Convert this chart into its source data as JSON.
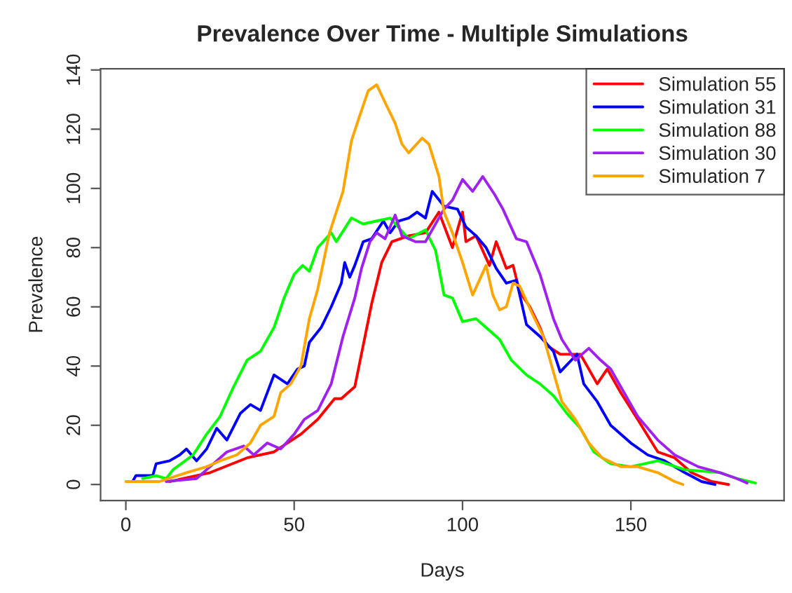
{
  "chart_data": {
    "type": "line",
    "title": "Prevalence Over Time - Multiple Simulations",
    "xlabel": "Days",
    "ylabel": "Prevalence",
    "xlim": [
      -7.5,
      195.5
    ],
    "xticks": [
      0,
      50,
      100,
      150
    ],
    "ylim": [
      -5.4,
      140.4
    ],
    "yticks": [
      0,
      20,
      40,
      60,
      80,
      100,
      120,
      140
    ],
    "grid": false,
    "legend": "top right",
    "line_style": "solid",
    "marker": "none",
    "series": [
      {
        "name": "Simulation 55",
        "color": "#ff0000",
        "x": [
          13,
          25,
          36,
          44,
          52,
          57,
          62,
          64,
          68,
          73,
          76,
          79,
          84,
          89,
          93,
          97,
          100,
          101,
          104,
          108,
          110,
          113,
          115,
          117,
          120,
          123,
          125,
          129,
          135,
          140,
          143,
          147,
          152,
          158,
          163,
          168,
          174,
          179
        ],
        "values": [
          1,
          4,
          9,
          11,
          17,
          22,
          29,
          29,
          33,
          61,
          75,
          82,
          84,
          85,
          92,
          80,
          92,
          82,
          84,
          74,
          82,
          73,
          74,
          65,
          60,
          53,
          47,
          44,
          44,
          34,
          39,
          31,
          22,
          11,
          9,
          4,
          1,
          0
        ]
      },
      {
        "name": "Simulation 31",
        "color": "#0000ff",
        "x": [
          2,
          3,
          8,
          9,
          13,
          16,
          18,
          21,
          24,
          27,
          30,
          34,
          37,
          40,
          44,
          48,
          51,
          53,
          54.5,
          58,
          61,
          64,
          65,
          66.5,
          68,
          70.5,
          73,
          76.5,
          78.5,
          81,
          84,
          86.5,
          89,
          91,
          94.5,
          98.5,
          101,
          104,
          107,
          110,
          113,
          116,
          119,
          123,
          127,
          129,
          134,
          136,
          140,
          144,
          150,
          155,
          160,
          166,
          171,
          175
        ],
        "values": [
          1,
          3,
          3,
          7,
          8,
          10,
          12,
          8,
          12,
          19,
          15,
          24,
          27,
          25,
          37,
          34,
          39,
          40,
          48,
          53,
          60,
          68,
          75,
          70,
          74,
          82,
          83,
          89,
          85,
          89,
          90,
          92,
          90,
          99,
          94,
          93,
          87,
          84,
          80,
          73,
          68,
          69,
          54,
          50,
          45,
          38,
          44,
          34,
          28,
          20,
          14,
          10,
          8,
          4,
          1,
          0
        ]
      },
      {
        "name": "Simulation 88",
        "color": "#00ff00",
        "x": [
          5,
          9,
          12,
          14,
          20,
          24,
          28,
          32,
          36,
          40,
          44,
          47,
          50,
          52.5,
          54.5,
          57,
          61,
          62.5,
          67,
          70.5,
          74.5,
          78.5,
          84,
          89,
          92,
          94.5,
          97,
          100,
          104,
          107,
          111,
          114.5,
          119,
          123,
          127,
          131,
          135,
          139,
          144,
          150,
          158,
          166,
          176.5,
          181.5,
          187
        ],
        "values": [
          2,
          3,
          2,
          5,
          10,
          17,
          23,
          33,
          42,
          45,
          53,
          63,
          71,
          74,
          72,
          80,
          85,
          82,
          90,
          88,
          89,
          90,
          83,
          86,
          79,
          64,
          63,
          55,
          56,
          53,
          49,
          42,
          37,
          34,
          30,
          24,
          19,
          11,
          7,
          6,
          8,
          5,
          4,
          2,
          0.5
        ]
      },
      {
        "name": "Simulation 30",
        "color": "#a020f0",
        "x": [
          12,
          21,
          25,
          30,
          35,
          38,
          42,
          46,
          50,
          53,
          57,
          61,
          64.5,
          68,
          70,
          72.5,
          74.5,
          77,
          80,
          82,
          86,
          89,
          94.5,
          97,
          100,
          103,
          106,
          109.5,
          112,
          116,
          119,
          123,
          127,
          129.5,
          133.5,
          137.5,
          141,
          144,
          148,
          152,
          158,
          163,
          170,
          176.5,
          181.5,
          184.5
        ],
        "values": [
          1,
          2,
          6,
          11,
          13,
          10,
          14,
          12,
          17,
          22,
          25,
          34,
          50,
          63,
          73,
          82,
          85,
          83,
          91,
          84,
          82,
          82,
          93,
          96,
          103,
          99,
          104,
          98,
          93,
          83,
          82,
          71,
          56,
          49,
          42,
          46,
          42,
          39,
          31,
          23,
          15,
          10,
          6,
          4,
          2,
          0.5
        ]
      },
      {
        "name": "Simulation 7",
        "color": "#ffa500",
        "x": [
          0,
          10,
          18,
          24,
          28,
          33,
          37,
          40,
          44,
          46,
          49,
          52,
          54.5,
          57,
          60.5,
          64.5,
          67,
          69,
          72,
          74.5,
          77,
          80,
          82,
          84,
          88,
          90,
          93,
          94.5,
          97,
          100,
          103,
          107,
          109,
          111,
          113,
          115,
          117,
          121,
          124,
          127,
          129.5,
          133.5,
          137.5,
          141.5,
          147,
          152,
          158,
          163,
          165.5
        ],
        "values": [
          1,
          1,
          4,
          6,
          8,
          10,
          14,
          20,
          23,
          31,
          34,
          40,
          56,
          66,
          85,
          99,
          116,
          123,
          133,
          135,
          129,
          122,
          115,
          112,
          117,
          115,
          104,
          92,
          85,
          75,
          64,
          74,
          64,
          59,
          60,
          68,
          67,
          57,
          50,
          38,
          28,
          22,
          14,
          9,
          6,
          6,
          4,
          1,
          0
        ]
      }
    ]
  }
}
